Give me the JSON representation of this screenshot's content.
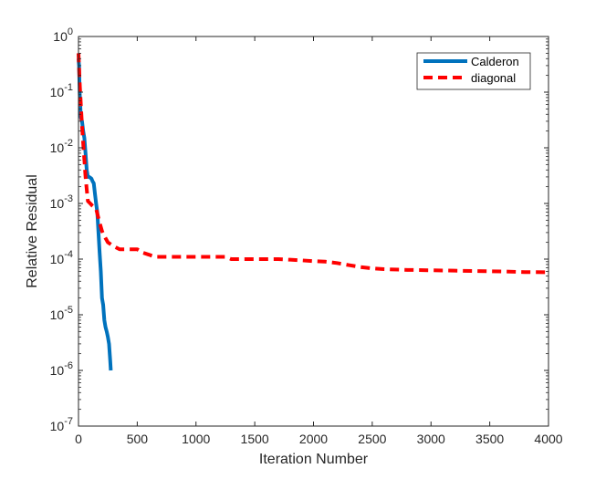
{
  "chart_data": {
    "type": "line",
    "title": "",
    "xlabel": "Iteration Number",
    "ylabel": "Relative Residual",
    "xlim": [
      0,
      4000
    ],
    "ylim": [
      1e-07,
      1
    ],
    "yscale": "log",
    "grid": false,
    "legend_position": "top-right",
    "x_ticks": [
      {
        "value": 0,
        "label": "0"
      },
      {
        "value": 500,
        "label": "500"
      },
      {
        "value": 1000,
        "label": "1000"
      },
      {
        "value": 1500,
        "label": "1500"
      },
      {
        "value": 2000,
        "label": "2000"
      },
      {
        "value": 2500,
        "label": "2500"
      },
      {
        "value": 3000,
        "label": "3000"
      },
      {
        "value": 3500,
        "label": "3500"
      },
      {
        "value": 4000,
        "label": "4000"
      }
    ],
    "y_ticks": [
      {
        "value": 1,
        "base": "10",
        "exp": "0"
      },
      {
        "value": 0.1,
        "base": "10",
        "exp": "-1"
      },
      {
        "value": 0.01,
        "base": "10",
        "exp": "-2"
      },
      {
        "value": 0.001,
        "base": "10",
        "exp": "-3"
      },
      {
        "value": 0.0001,
        "base": "10",
        "exp": "-4"
      },
      {
        "value": 1e-05,
        "base": "10",
        "exp": "-5"
      },
      {
        "value": 1e-06,
        "base": "10",
        "exp": "-6"
      },
      {
        "value": 1e-07,
        "base": "10",
        "exp": "-7"
      }
    ],
    "series": [
      {
        "name": "Calderon",
        "color": "#0072BD",
        "style": "solid",
        "x": [
          0,
          5,
          10,
          20,
          30,
          40,
          50,
          60,
          70,
          80,
          90,
          100,
          110,
          120,
          130,
          140,
          150,
          160,
          170,
          180,
          190,
          200,
          210,
          220,
          230,
          240,
          250,
          260,
          270,
          275
        ],
        "y": [
          0.4,
          0.3,
          0.1,
          0.035,
          0.03,
          0.02,
          0.015,
          0.008,
          0.004,
          0.003,
          0.003,
          0.0029,
          0.0028,
          0.0025,
          0.0023,
          0.0015,
          0.001,
          0.0007,
          0.0003,
          0.00013,
          6e-05,
          2e-05,
          1.5e-05,
          8e-06,
          6e-06,
          5e-06,
          4e-06,
          3e-06,
          1.5e-06,
          1e-06
        ]
      },
      {
        "name": "diagonal",
        "color": "#FF0000",
        "style": "dashed",
        "x": [
          0,
          10,
          20,
          30,
          40,
          50,
          60,
          70,
          80,
          100,
          120,
          150,
          180,
          200,
          220,
          250,
          300,
          350,
          400,
          450,
          500,
          550,
          600,
          650,
          700,
          800,
          900,
          1000,
          1100,
          1200,
          1250,
          1300,
          1400,
          1500,
          1600,
          1700,
          1800,
          1900,
          2000,
          2100,
          2200,
          2300,
          2400,
          2500,
          2600,
          2800,
          3000,
          3200,
          3400,
          3600,
          3800,
          4000
        ],
        "y": [
          0.5,
          0.15,
          0.06,
          0.025,
          0.012,
          0.006,
          0.003,
          0.0018,
          0.0011,
          0.001,
          0.0009,
          0.0008,
          0.00045,
          0.00032,
          0.00026,
          0.0002,
          0.00017,
          0.00015,
          0.00015,
          0.00015,
          0.00015,
          0.00013,
          0.00012,
          0.00011,
          0.00011,
          0.00011,
          0.00011,
          0.00011,
          0.00011,
          0.00011,
          0.00011,
          0.0001,
          0.0001,
          0.0001,
          0.0001,
          0.0001,
          9.75e-05,
          9.5e-05,
          9.2e-05,
          9e-05,
          8.5e-05,
          7.8e-05,
          7.2e-05,
          6.8e-05,
          6.6e-05,
          6.4e-05,
          6.3e-05,
          6.2e-05,
          6.1e-05,
          6e-05,
          5.85e-05,
          5.8e-05
        ]
      }
    ]
  }
}
